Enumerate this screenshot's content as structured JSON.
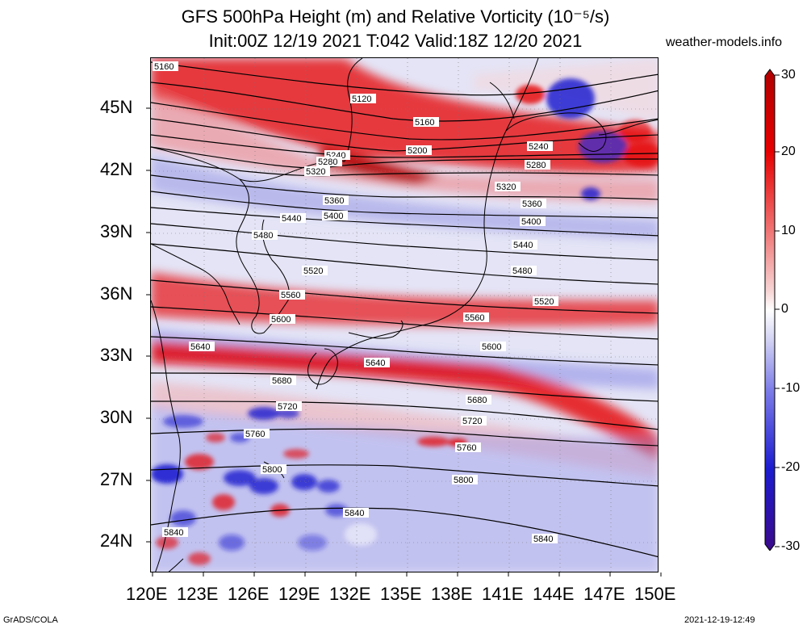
{
  "title": {
    "line1": "GFS 500hPa Height (m) and Relative Vorticity (10⁻⁵/s)",
    "line2": "Init:00Z 12/19 2021 T:042 Valid:18Z 12/20 2021"
  },
  "site": "weather-models.info",
  "lat_labels": [
    "45N",
    "42N",
    "39N",
    "36N",
    "33N",
    "30N",
    "27N",
    "24N"
  ],
  "lon_labels": [
    "120E",
    "123E",
    "126E",
    "129E",
    "132E",
    "135E",
    "138E",
    "141E",
    "144E",
    "147E",
    "150E"
  ],
  "colorbar": {
    "labels": [
      "30",
      "20",
      "10",
      "0",
      "-10",
      "-20",
      "-30"
    ],
    "colors": [
      "#3b0a8a",
      "#1c1cd0",
      "#7a7ae8",
      "#c9c9f2",
      "#ffffff",
      "#f7c9c9",
      "#f07070",
      "#e60000",
      "#b50000"
    ]
  },
  "contours": [
    "5160",
    "5120",
    "5160",
    "5200",
    "5240",
    "5280",
    "5320",
    "5360",
    "5400",
    "5440",
    "5480",
    "5520",
    "5560",
    "5600",
    "5640",
    "5680",
    "5720",
    "5760",
    "5800",
    "5840"
  ],
  "contour_labels": [
    {
      "text": "5160"
    },
    {
      "text": "5120"
    },
    {
      "text": "5160"
    },
    {
      "text": "5240"
    },
    {
      "text": "5200"
    },
    {
      "text": "5280"
    },
    {
      "text": "5320"
    },
    {
      "text": "5240"
    },
    {
      "text": "5280"
    },
    {
      "text": "5320"
    },
    {
      "text": "5360"
    },
    {
      "text": "5400"
    },
    {
      "text": "5360"
    },
    {
      "text": "5440"
    },
    {
      "text": "5400"
    },
    {
      "text": "5480"
    },
    {
      "text": "5440"
    },
    {
      "text": "5520"
    },
    {
      "text": "5480"
    },
    {
      "text": "5560"
    },
    {
      "text": "5520"
    },
    {
      "text": "5600"
    },
    {
      "text": "5560"
    },
    {
      "text": "5640"
    },
    {
      "text": "5600"
    },
    {
      "text": "5640"
    },
    {
      "text": "5680"
    },
    {
      "text": "5680"
    },
    {
      "text": "5720"
    },
    {
      "text": "5720"
    },
    {
      "text": "5760"
    },
    {
      "text": "5760"
    },
    {
      "text": "5800"
    },
    {
      "text": "5800"
    },
    {
      "text": "5840"
    },
    {
      "text": "5840"
    },
    {
      "text": "5840"
    }
  ],
  "footer": {
    "left": "GrADS/COLA",
    "right": "2021-12-19-12:49"
  }
}
